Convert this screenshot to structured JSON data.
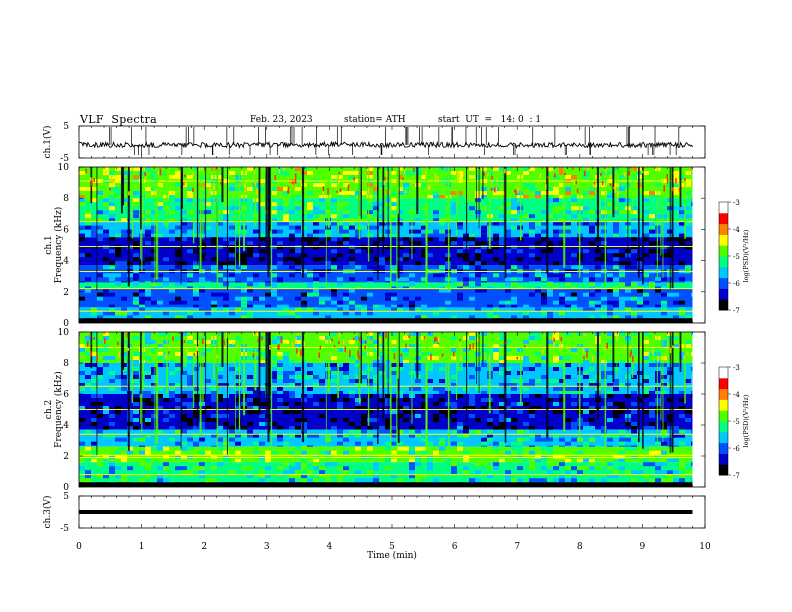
{
  "header": {
    "title": "VLF  Spectra",
    "date": "Feb. 23, 2023",
    "station": "station= ATH",
    "start": "start  UT  =   14: 0  : 1"
  },
  "chart_data": [
    {
      "type": "line",
      "panel": "ch1-waveform",
      "ylabel": "ch.1(V)",
      "ylim": [
        -5,
        5
      ],
      "yticks": [
        "5",
        "-5"
      ],
      "xlim": [
        0,
        10
      ],
      "series": [
        {
          "x": [
            0,
            1,
            2,
            3,
            4,
            5,
            6,
            7,
            8,
            9,
            9.8
          ],
          "values": [
            -0.8,
            -0.9,
            -1.0,
            -0.9,
            -0.8,
            -0.9,
            -0.9,
            -1.0,
            -0.9,
            -0.9,
            -0.9
          ]
        }
      ],
      "color": "#000000",
      "spikes": "many vertical spikes reaching the upper and lower axis limits"
    },
    {
      "type": "heatmap",
      "panel": "ch1-spectrogram",
      "ylabel": "ch.1\nFrequency  (kHz)",
      "ylim": [
        0,
        10
      ],
      "yticks": [
        "0",
        "2",
        "4",
        "6",
        "8",
        "10"
      ],
      "xlim": [
        0,
        9.8
      ],
      "colorbar": {
        "label": "log(PSD)(V²/Hz)",
        "range": [
          -7,
          -3
        ],
        "ticks": [
          "-3",
          "-4",
          "-5",
          "-6",
          "-7"
        ],
        "colors": [
          "#000000",
          "#0000c8",
          "#0050ff",
          "#00c8ff",
          "#00ff80",
          "#50ff00",
          "#ffff00",
          "#ff8000",
          "#ff0000",
          "#ffffff"
        ]
      },
      "bands": [
        {
          "fmin": 8.0,
          "fmax": 10.0,
          "level": -4.8
        },
        {
          "fmin": 6.5,
          "fmax": 8.0,
          "level": -5.2
        },
        {
          "fmin": 5.5,
          "fmax": 6.5,
          "level": -5.8
        },
        {
          "fmin": 3.7,
          "fmax": 5.5,
          "level": -6.6
        },
        {
          "fmin": 2.6,
          "fmax": 3.7,
          "level": -5.9
        },
        {
          "fmin": 2.2,
          "fmax": 2.6,
          "level": -5.3
        },
        {
          "fmin": 1.0,
          "fmax": 2.2,
          "level": -6.0
        },
        {
          "fmin": 0.3,
          "fmax": 1.0,
          "level": -5.5
        },
        {
          "fmin": 0.0,
          "fmax": 0.3,
          "level": -6.9
        }
      ],
      "lines_khz": [
        0.75,
        2.2,
        3.3,
        4.9,
        6.5,
        9.1
      ]
    },
    {
      "type": "heatmap",
      "panel": "ch2-spectrogram",
      "ylabel": "ch.2\nFrequency  (kHz)",
      "ylim": [
        0,
        10
      ],
      "yticks": [
        "0",
        "2",
        "4",
        "6",
        "8",
        "10"
      ],
      "xlim": [
        0,
        9.8
      ],
      "colorbar": {
        "label": "log(PSD)(V²/Hz)",
        "range": [
          -7,
          -3
        ],
        "ticks": [
          "-3",
          "-4",
          "-5",
          "-6",
          "-7"
        ],
        "colors": [
          "#000000",
          "#0000c8",
          "#0050ff",
          "#00c8ff",
          "#00ff80",
          "#50ff00",
          "#ffff00",
          "#ff8000",
          "#ff0000",
          "#ffffff"
        ]
      },
      "bands": [
        {
          "fmin": 8.0,
          "fmax": 10.0,
          "level": -5.0
        },
        {
          "fmin": 6.0,
          "fmax": 8.0,
          "level": -5.8
        },
        {
          "fmin": 3.7,
          "fmax": 6.0,
          "level": -6.4
        },
        {
          "fmin": 2.6,
          "fmax": 3.7,
          "level": -5.6
        },
        {
          "fmin": 1.6,
          "fmax": 2.6,
          "level": -4.9
        },
        {
          "fmin": 0.3,
          "fmax": 1.6,
          "level": -5.3
        },
        {
          "fmin": 0.0,
          "fmax": 0.3,
          "level": -6.8
        }
      ],
      "lines_khz": [
        0.8,
        1.9,
        2.05,
        3.4,
        5.0,
        6.5,
        9.0
      ]
    },
    {
      "type": "line",
      "panel": "ch3-waveform",
      "ylabel": "ch.3(V)",
      "ylim": [
        -5,
        5
      ],
      "yticks": [
        "5",
        "-5"
      ],
      "xlim": [
        0,
        10
      ],
      "series": [
        {
          "x": [
            0,
            9.8
          ],
          "values": [
            0,
            0
          ]
        }
      ],
      "color": "#000000",
      "xlabel": "Time  (min)",
      "xticks": [
        "0",
        "1",
        "2",
        "3",
        "4",
        "5",
        "6",
        "7",
        "8",
        "9",
        "10"
      ]
    }
  ]
}
